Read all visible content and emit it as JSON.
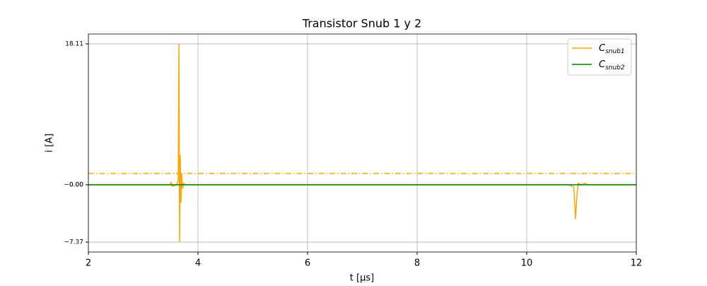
{
  "chart_data": {
    "type": "line",
    "title": "Transistor Snub 1 y 2",
    "xlabel": "t [μs]",
    "ylabel": "i [A]",
    "xlim": [
      2,
      12
    ],
    "xticks": [
      2,
      4,
      6,
      8,
      10,
      12
    ],
    "ylim": [
      -8.64,
      19.38
    ],
    "yticks": [
      18.11,
      {
        "value": 0,
        "label": "0.00"
      },
      {
        "value": 0,
        "label": "−0.00"
      },
      {
        "value": -7.37,
        "label": "−7.37"
      }
    ],
    "grid": true,
    "legend": "upper right",
    "series": [
      {
        "name": "C",
        "subscript": "snub1",
        "color": "orange",
        "x": [
          2,
          3.48,
          3.51,
          3.53,
          3.61,
          3.64,
          3.652,
          3.665,
          3.677,
          3.69,
          3.703,
          3.716,
          3.74,
          3.77,
          10.77,
          10.86,
          10.89,
          10.92,
          10.94,
          10.99,
          11.07,
          11.1,
          12
        ],
        "values": [
          0,
          0,
          0.3,
          -0.2,
          0,
          0.5,
          18.11,
          -7.37,
          3.8,
          -2.3,
          1.5,
          -0.5,
          0.2,
          0,
          0,
          -0.3,
          -4.4,
          -1.0,
          0.2,
          0,
          0.2,
          0,
          0
        ]
      },
      {
        "name": "C",
        "subscript": "snub2",
        "color": "green",
        "x": [
          2,
          12
        ],
        "values": [
          0,
          0
        ]
      }
    ],
    "hlines": [
      {
        "value": 1.46,
        "color": "orange",
        "style": "dashdot"
      }
    ]
  }
}
